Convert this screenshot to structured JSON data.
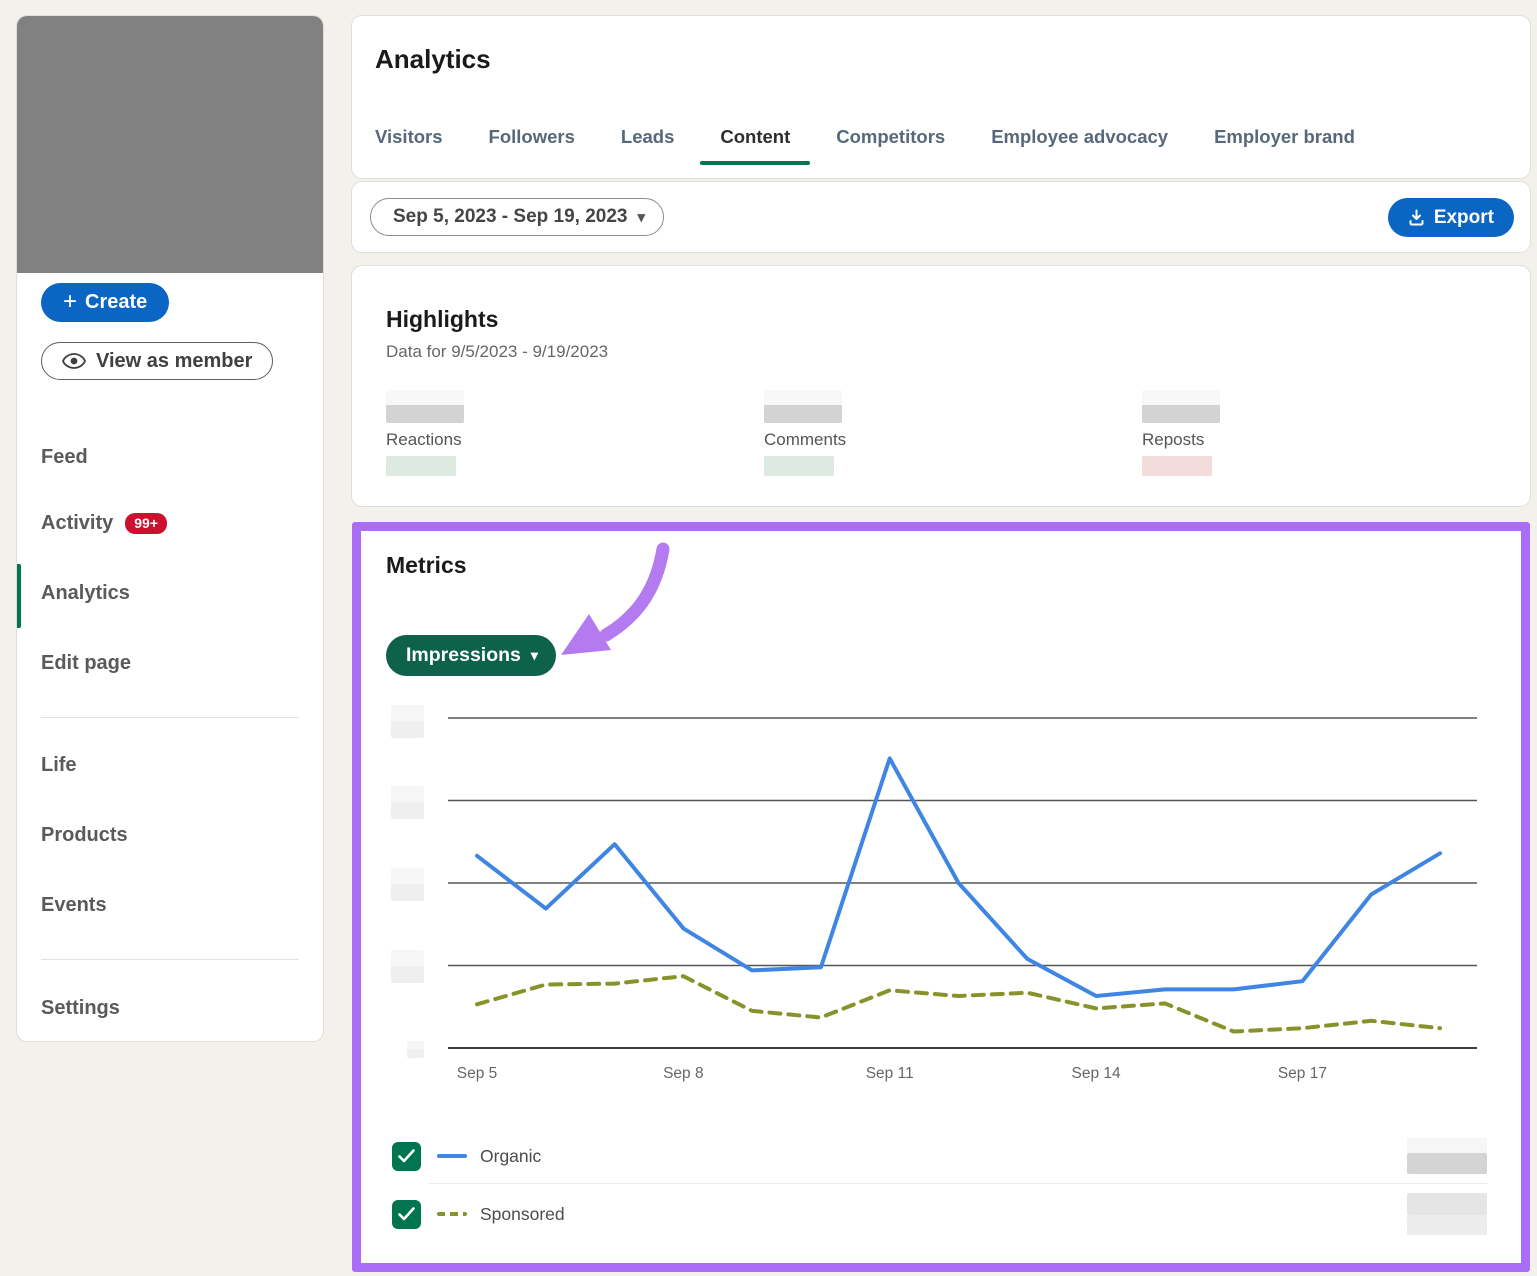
{
  "colors": {
    "brand_blue": "#0a66c2",
    "brand_green": "#01754f",
    "badge_red": "#cb112d",
    "highlight_purple": "#a96df8",
    "organic_line": "#3f86e2",
    "sponsored_line": "#87932a",
    "trend_up_tint": "#dde9e1",
    "trend_down_tint": "#f3dcdc"
  },
  "sidebar": {
    "create_label": "Create",
    "view_as_member_label": "View as member",
    "items": [
      {
        "label": "Feed"
      },
      {
        "label": "Activity",
        "badge": "99+"
      },
      {
        "label": "Analytics",
        "active": true
      },
      {
        "label": "Edit page"
      },
      {
        "label": "Life"
      },
      {
        "label": "Products"
      },
      {
        "label": "Events"
      },
      {
        "label": "Settings"
      }
    ]
  },
  "header": {
    "title": "Analytics",
    "tabs": [
      {
        "label": "Visitors"
      },
      {
        "label": "Followers"
      },
      {
        "label": "Leads"
      },
      {
        "label": "Content",
        "active": true
      },
      {
        "label": "Competitors"
      },
      {
        "label": "Employee advocacy"
      },
      {
        "label": "Employer brand"
      }
    ]
  },
  "toolbar": {
    "date_range": "Sep 5, 2023 - Sep 19, 2023",
    "export_label": "Export"
  },
  "highlights": {
    "title": "Highlights",
    "subtitle": "Data for 9/5/2023 - 9/19/2023",
    "stats": [
      {
        "label": "Reactions",
        "value_redacted": true,
        "trend_color": "#dde9e1"
      },
      {
        "label": "Comments",
        "value_redacted": true,
        "trend_color": "#dde9e1"
      },
      {
        "label": "Reposts",
        "value_redacted": true,
        "trend_color": "#f3dcdc"
      }
    ]
  },
  "metrics": {
    "title": "Metrics",
    "metric_selector_label": "Impressions"
  },
  "legend": [
    {
      "label": "Organic",
      "checked": true,
      "line_style": "solid",
      "color": "#3f86e2",
      "value_redacted": true
    },
    {
      "label": "Sponsored",
      "checked": true,
      "line_style": "dashed",
      "color": "#87932a",
      "value_redacted": true
    }
  ],
  "chart_data": {
    "type": "line",
    "title": "Metrics - Impressions (Sep 5, 2023 - Sep 19, 2023)",
    "xlabel": "",
    "ylabel": "",
    "x": [
      "Sep 5",
      "Sep 6",
      "Sep 7",
      "Sep 8",
      "Sep 9",
      "Sep 10",
      "Sep 11",
      "Sep 12",
      "Sep 13",
      "Sep 14",
      "Sep 15",
      "Sep 16",
      "Sep 17",
      "Sep 18",
      "Sep 19"
    ],
    "x_tick_labels": [
      "Sep 5",
      "Sep 8",
      "Sep 11",
      "Sep 14",
      "Sep 17"
    ],
    "x_tick_indices": [
      0,
      3,
      6,
      9,
      12
    ],
    "y_axis_labels_redacted": true,
    "y_unit": "gridline units (1 unit = one horizontal gridline; numeric axis labels are blurred in source)",
    "ylim": [
      0,
      4
    ],
    "grid": true,
    "legend_position": "bottom",
    "series": [
      {
        "name": "Organic",
        "style": "solid",
        "color": "#3f86e2",
        "values": [
          2.33,
          1.69,
          2.47,
          1.45,
          0.94,
          0.98,
          3.51,
          2.0,
          1.08,
          0.63,
          0.71,
          0.71,
          0.81,
          1.86,
          2.36
        ]
      },
      {
        "name": "Sponsored",
        "style": "dashed",
        "color": "#87932a",
        "values": [
          0.53,
          0.77,
          0.78,
          0.87,
          0.45,
          0.37,
          0.7,
          0.63,
          0.67,
          0.48,
          0.54,
          0.2,
          0.24,
          0.33,
          0.24
        ]
      }
    ]
  }
}
